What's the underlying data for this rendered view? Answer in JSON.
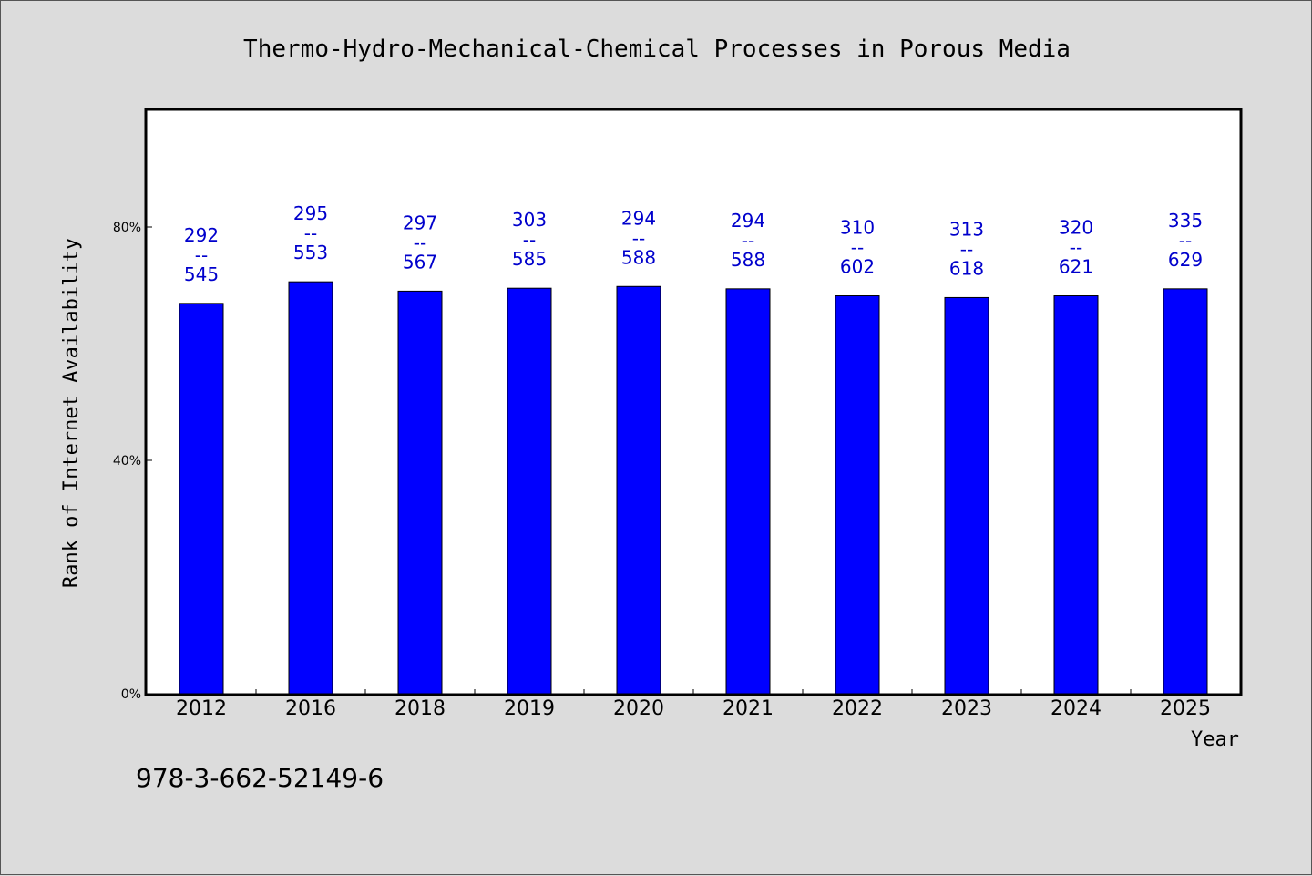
{
  "chart_data": {
    "type": "bar",
    "title": "Thermo-Hydro-Mechanical-Chemical Processes in Porous Media",
    "xlabel": "Year",
    "ylabel": "Rank of Internet Availability",
    "categories": [
      "2012",
      "2016",
      "2018",
      "2019",
      "2020",
      "2021",
      "2022",
      "2023",
      "2024",
      "2025"
    ],
    "values": [
      66.9,
      70.6,
      69.0,
      69.5,
      69.8,
      69.4,
      68.2,
      67.9,
      68.2,
      69.4
    ],
    "labels_top": [
      "292",
      "295",
      "297",
      "303",
      "294",
      "294",
      "310",
      "313",
      "320",
      "335"
    ],
    "labels_sep": "--",
    "labels_bottom": [
      "545",
      "553",
      "567",
      "585",
      "588",
      "588",
      "602",
      "618",
      "621",
      "629"
    ],
    "yticks": [
      0,
      40,
      80
    ],
    "ytick_labels": [
      "0%",
      "40%",
      "80%"
    ],
    "ylim": [
      0,
      100
    ],
    "grid": false,
    "bar_color": "#0000ff",
    "label_color": "#0000cc",
    "background_color": "#dcdcdc",
    "plot_background_color": "#ffffff"
  },
  "footer": {
    "isbn": "978-3-662-52149-6"
  }
}
